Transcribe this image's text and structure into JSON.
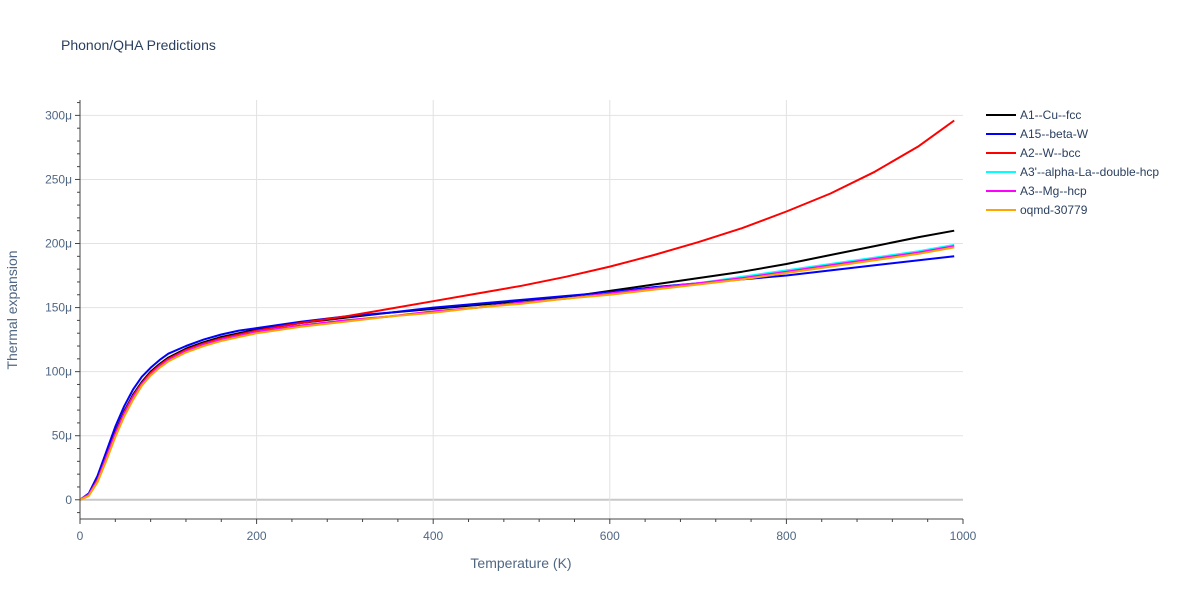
{
  "chart_data": {
    "type": "line",
    "title": "Phonon/QHA Predictions",
    "xlabel": "Temperature (K)",
    "ylabel": "Thermal expansion",
    "xlim": [
      0,
      1000
    ],
    "ylim": [
      -15,
      312
    ],
    "x_ticks": [
      0,
      200,
      400,
      600,
      800,
      1000
    ],
    "x_tick_labels": [
      "0",
      "200",
      "400",
      "600",
      "800",
      "1000"
    ],
    "y_ticks": [
      0,
      50,
      100,
      150,
      200,
      250,
      300
    ],
    "y_tick_labels": [
      "0",
      "50μ",
      "100μ",
      "150μ",
      "200μ",
      "250μ",
      "300μ"
    ],
    "grid": true,
    "legend_position": "right",
    "series": [
      {
        "name": "A1--Cu--fcc",
        "color": "#000000",
        "x": [
          0,
          10,
          20,
          30,
          40,
          50,
          60,
          70,
          80,
          90,
          100,
          120,
          140,
          160,
          180,
          200,
          250,
          300,
          350,
          400,
          450,
          500,
          550,
          600,
          650,
          700,
          750,
          800,
          850,
          900,
          950,
          990
        ],
        "y": [
          0,
          4,
          16,
          34,
          53,
          69,
          82,
          92,
          100,
          106,
          111,
          118,
          123,
          127,
          130,
          133,
          138,
          142,
          146,
          149,
          152,
          155,
          158,
          163,
          168,
          173,
          178,
          184,
          191,
          198,
          205,
          210
        ]
      },
      {
        "name": "A15--beta-W",
        "color": "#0000ff",
        "x": [
          0,
          10,
          20,
          30,
          40,
          50,
          60,
          70,
          80,
          90,
          100,
          120,
          140,
          160,
          180,
          200,
          250,
          300,
          350,
          400,
          450,
          500,
          550,
          600,
          650,
          700,
          750,
          800,
          850,
          900,
          950,
          990
        ],
        "y": [
          0,
          5,
          19,
          38,
          57,
          73,
          86,
          96,
          103,
          109,
          114,
          120,
          125,
          129,
          132,
          134,
          139,
          143,
          146,
          150,
          153,
          156,
          159,
          162,
          166,
          169,
          172,
          175,
          179,
          183,
          187,
          190
        ]
      },
      {
        "name": "A2--W--bcc",
        "color": "#ff0000",
        "x": [
          0,
          10,
          20,
          30,
          40,
          50,
          60,
          70,
          80,
          90,
          100,
          120,
          140,
          160,
          180,
          200,
          250,
          300,
          350,
          400,
          450,
          500,
          550,
          600,
          650,
          700,
          750,
          800,
          850,
          900,
          950,
          990
        ],
        "y": [
          0,
          4,
          16,
          34,
          52,
          68,
          81,
          91,
          99,
          105,
          110,
          117,
          122,
          126,
          129,
          132,
          138,
          143,
          149,
          155,
          161,
          167,
          174,
          182,
          191,
          201,
          212,
          225,
          239,
          256,
          276,
          296
        ]
      },
      {
        "name": "A3'--alpha-La--double-hcp",
        "color": "#00ffff",
        "x": [
          0,
          10,
          20,
          30,
          40,
          50,
          60,
          70,
          80,
          90,
          100,
          120,
          140,
          160,
          180,
          200,
          250,
          300,
          350,
          400,
          450,
          500,
          550,
          600,
          650,
          700,
          750,
          800,
          850,
          900,
          950,
          990
        ],
        "y": [
          0,
          4,
          15,
          33,
          51,
          67,
          80,
          90,
          98,
          104,
          109,
          116,
          121,
          125,
          128,
          131,
          136,
          140,
          143,
          147,
          150,
          154,
          157,
          161,
          165,
          169,
          174,
          179,
          184,
          189,
          194,
          199
        ]
      },
      {
        "name": "A3--Mg--hcp",
        "color": "#ff00ff",
        "x": [
          0,
          10,
          20,
          30,
          40,
          50,
          60,
          70,
          80,
          90,
          100,
          120,
          140,
          160,
          180,
          200,
          250,
          300,
          350,
          400,
          450,
          500,
          550,
          600,
          650,
          700,
          750,
          800,
          850,
          900,
          950,
          990
        ],
        "y": [
          0,
          4,
          15,
          33,
          51,
          67,
          80,
          90,
          98,
          104,
          109,
          116,
          121,
          125,
          128,
          131,
          136,
          140,
          143,
          147,
          150,
          154,
          157,
          161,
          165,
          169,
          173,
          178,
          183,
          188,
          193,
          198
        ]
      },
      {
        "name": "oqmd-30779",
        "color": "#ffa500",
        "x": [
          0,
          10,
          20,
          30,
          40,
          50,
          60,
          70,
          80,
          90,
          100,
          120,
          140,
          160,
          180,
          200,
          250,
          300,
          350,
          400,
          450,
          500,
          550,
          600,
          650,
          700,
          750,
          800,
          850,
          900,
          950,
          990
        ],
        "y": [
          0,
          3,
          14,
          31,
          49,
          65,
          78,
          89,
          97,
          103,
          108,
          115,
          120,
          124,
          127,
          130,
          135,
          139,
          143,
          146,
          150,
          153,
          157,
          160,
          164,
          168,
          172,
          177,
          182,
          187,
          192,
          197
        ]
      }
    ]
  }
}
